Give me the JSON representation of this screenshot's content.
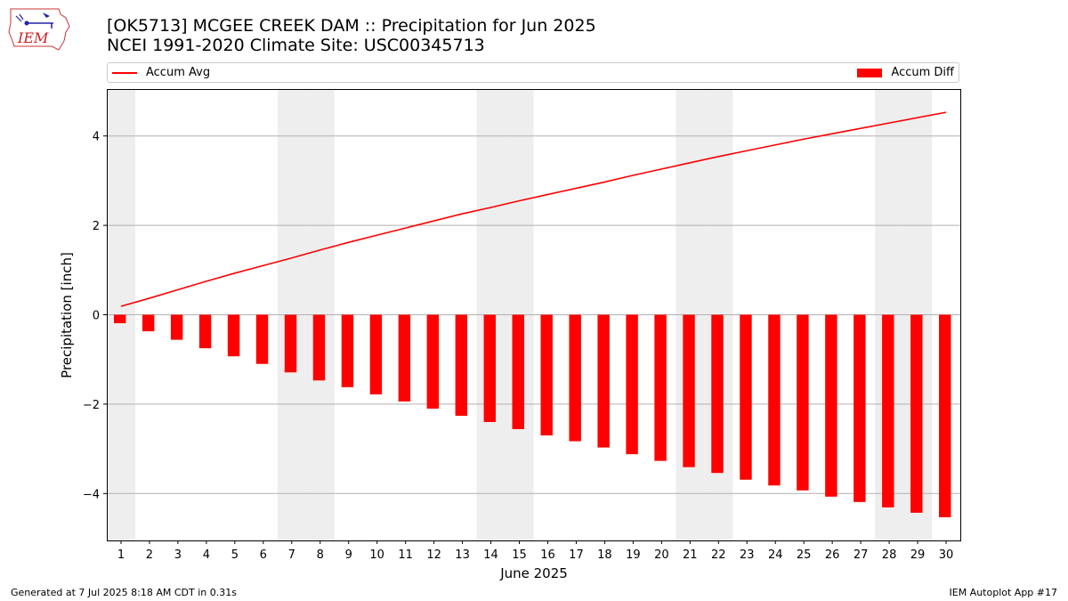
{
  "logo_text": "IEM",
  "title": "[OK5713] MCGEE CREEK DAM :: Precipitation for Jun 2025",
  "subtitle": "NCEI 1991-2020 Climate Site: USC00345713",
  "legend": {
    "line_label": "Accum Avg",
    "bar_label": "Accum Diff"
  },
  "footer": {
    "left": "Generated at 7 Jul 2025 8:18 AM CDT in 0.31s",
    "right": "IEM Autoplot App #17"
  },
  "colors": {
    "series": "#ff0000",
    "weekend_shade": "#eeeeee",
    "grid": "#b0b0b0"
  },
  "chart_data": {
    "type": "bar",
    "xlabel": "June 2025",
    "ylabel": "Precipitation [inch]",
    "ylim": [
      -5.05,
      5.05
    ],
    "yticks": [
      4,
      2,
      0,
      -2,
      -4
    ],
    "ytick_labels": [
      "4",
      "2",
      "0",
      "−2",
      "−4"
    ],
    "grid": "horizontal",
    "legend_placement": "top",
    "categories": [
      "1",
      "2",
      "3",
      "4",
      "5",
      "6",
      "7",
      "8",
      "9",
      "10",
      "11",
      "12",
      "13",
      "14",
      "15",
      "16",
      "17",
      "18",
      "19",
      "20",
      "21",
      "22",
      "23",
      "24",
      "25",
      "26",
      "27",
      "28",
      "29",
      "30"
    ],
    "shaded_days": [
      1,
      7,
      8,
      14,
      15,
      21,
      22,
      28,
      29
    ],
    "series": [
      {
        "name": "Accum Avg",
        "type": "line",
        "values": [
          0.19,
          0.37,
          0.56,
          0.75,
          0.93,
          1.1,
          1.27,
          1.45,
          1.62,
          1.78,
          1.94,
          2.1,
          2.26,
          2.4,
          2.55,
          2.69,
          2.83,
          2.97,
          3.12,
          3.26,
          3.4,
          3.54,
          3.67,
          3.8,
          3.93,
          4.05,
          4.17,
          4.29,
          4.41,
          4.53
        ]
      },
      {
        "name": "Accum Diff",
        "type": "bar",
        "values": [
          -0.19,
          -0.37,
          -0.56,
          -0.75,
          -0.93,
          -1.1,
          -1.29,
          -1.47,
          -1.62,
          -1.78,
          -1.94,
          -2.1,
          -2.26,
          -2.4,
          -2.56,
          -2.7,
          -2.83,
          -2.97,
          -3.12,
          -3.27,
          -3.41,
          -3.54,
          -3.69,
          -3.82,
          -3.93,
          -4.07,
          -4.19,
          -4.31,
          -4.43,
          -4.53
        ]
      }
    ]
  }
}
